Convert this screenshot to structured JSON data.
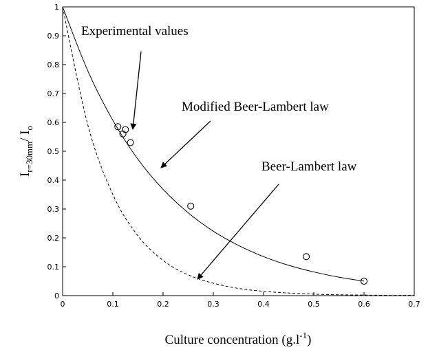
{
  "chart_data": {
    "type": "scatter-line",
    "x_label": {
      "text": "Culture concentration (g.l",
      "sup": "-1",
      "close": ")"
    },
    "y_label": {
      "main1": "I",
      "sub1": "r=30mm",
      "main2": "/ I",
      "sub2": "o"
    },
    "xlim": [
      0,
      0.7
    ],
    "xticks": [
      0,
      0.1,
      0.2,
      0.3,
      0.4,
      0.5,
      0.6,
      0.7
    ],
    "ylim": [
      0,
      1
    ],
    "yticks": [
      0,
      0.1,
      0.2,
      0.3,
      0.4,
      0.5,
      0.6,
      0.7,
      0.8,
      0.9,
      1
    ],
    "series": [
      {
        "name": "Experimental values",
        "style": "markers",
        "color": "#000000",
        "x": [
          0.11,
          0.12,
          0.125,
          0.135,
          0.255,
          0.485,
          0.6
        ],
        "values": [
          0.585,
          0.56,
          0.575,
          0.53,
          0.31,
          0.135,
          0.05
        ]
      },
      {
        "name": "Modified Beer-Lambert law",
        "style": "solid",
        "color": "#000000",
        "x": [
          0,
          0.05,
          0.1,
          0.15,
          0.2,
          0.25,
          0.3,
          0.35,
          0.4,
          0.45,
          0.5,
          0.55,
          0.6
        ],
        "values": [
          1,
          0.779,
          0.607,
          0.472,
          0.368,
          0.287,
          0.223,
          0.174,
          0.135,
          0.105,
          0.082,
          0.064,
          0.05
        ]
      },
      {
        "name": "Beer-Lambert law",
        "style": "dashed",
        "color": "#000000",
        "x": [
          0,
          0.05,
          0.1,
          0.15,
          0.2,
          0.25,
          0.3,
          0.35,
          0.4,
          0.45,
          0.5,
          0.55,
          0.6,
          0.65,
          0.7
        ],
        "values": [
          1,
          0.592,
          0.35,
          0.207,
          0.122,
          0.072,
          0.043,
          0.025,
          0.015,
          0.009,
          0.005,
          0.003,
          0.002,
          0.001,
          0.001
        ]
      }
    ]
  }
}
